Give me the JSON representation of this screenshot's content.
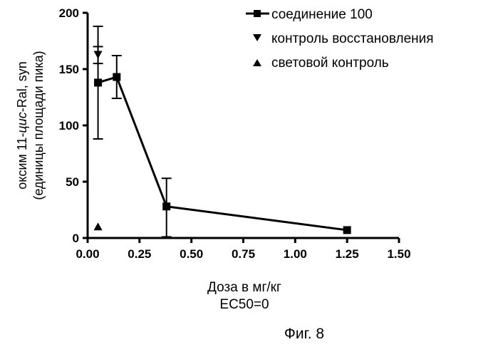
{
  "chart_data": {
    "type": "scatter",
    "title": "",
    "xlabel": "Доза в мг/кг",
    "ylabel_line1_prefix": "оксим 11-",
    "ylabel_line1_italic": "цис",
    "ylabel_line1_suffix": "-Ral,  syn",
    "ylabel_line2": "(единицы площади пика)",
    "xlim": [
      0,
      1.5
    ],
    "ylim": [
      0,
      200
    ],
    "x_ticks": [
      "0.00",
      "0.25",
      "0.50",
      "0.75",
      "1.00",
      "1.25",
      "1.50"
    ],
    "x_tick_values": [
      0,
      0.25,
      0.5,
      0.75,
      1.0,
      1.25,
      1.5
    ],
    "y_ticks": [
      "0",
      "50",
      "100",
      "150",
      "200"
    ],
    "y_tick_values": [
      0,
      50,
      100,
      150,
      200
    ],
    "legend_position": "top-right",
    "grid": false,
    "series": [
      {
        "name": "соединение 100",
        "marker": "square",
        "line": true,
        "x": [
          0.05,
          0.14,
          0.38,
          1.25
        ],
        "y": [
          138,
          143,
          28,
          7
        ],
        "err_upper": [
          188,
          162,
          53,
          null
        ],
        "err_lower": [
          88,
          124,
          1,
          null
        ]
      },
      {
        "name": "контроль восстановления",
        "marker": "triangle-down",
        "line": false,
        "x": [
          0.05
        ],
        "y": [
          163
        ],
        "err_upper": [
          170
        ],
        "err_lower": [
          155
        ]
      },
      {
        "name": "световой контроль",
        "marker": "triangle-up",
        "line": false,
        "x": [
          0.05
        ],
        "y": [
          10
        ],
        "err_upper": [
          null
        ],
        "err_lower": [
          null
        ]
      }
    ]
  },
  "annotations": {
    "ec50": "EC50=0",
    "figure_label": "Фиг. 8"
  }
}
